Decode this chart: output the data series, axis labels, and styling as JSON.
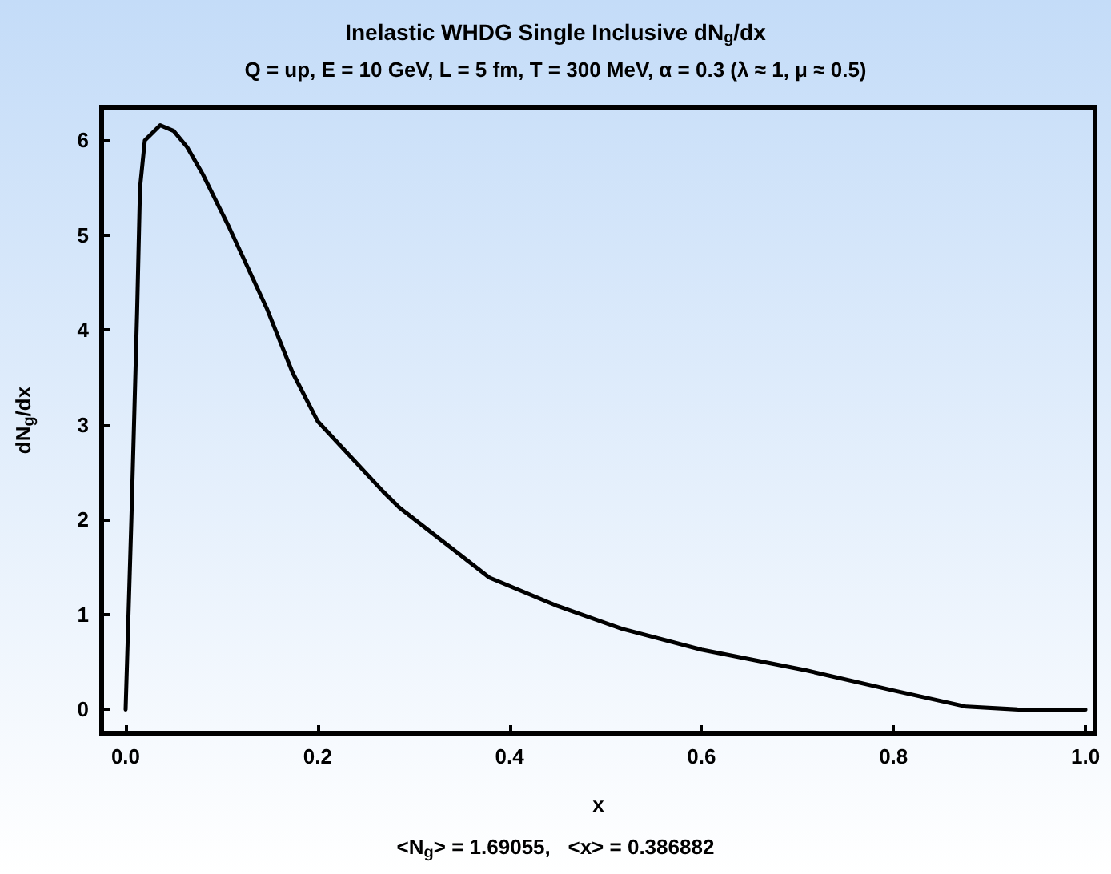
{
  "chart_data": {
    "type": "line",
    "title": "Inelastic WHDG Single Inclusive dN$_{g}$/dx",
    "subtitle": "Q = up, E = 10 GeV, L = 5 fm, T = 300 MeV, α = 0.3 (λ ≈ 1, μ ≈ 0.5)",
    "xlabel": "x",
    "ylabel": "dN$_{g}$/dx",
    "annotations": [
      "<N$_{g}$> = 1.69055,   <x> = 0.386882"
    ],
    "x": [
      0.0,
      0.006,
      0.012,
      0.015,
      0.02,
      0.036,
      0.05,
      0.064,
      0.08,
      0.108,
      0.147,
      0.174,
      0.2,
      0.268,
      0.285,
      0.379,
      0.45,
      0.517,
      0.6,
      0.71,
      0.8,
      0.876,
      0.93,
      1.0
    ],
    "series": [
      {
        "color": "#000000",
        "values": [
          0.0,
          2.0,
          4.2,
          5.5,
          6.0,
          6.16,
          6.1,
          5.93,
          5.65,
          5.08,
          4.23,
          3.55,
          3.04,
          2.3,
          2.13,
          1.39,
          1.09,
          0.85,
          0.63,
          0.41,
          0.2,
          0.03,
          0.0,
          0.0
        ]
      }
    ],
    "xlim": [
      -0.025,
      1.01
    ],
    "ylim": [
      -0.25,
      6.35
    ],
    "xticks": [
      {
        "value": 0,
        "label": "0.0"
      },
      0.2,
      0.4,
      0.6,
      0.8,
      {
        "value": 1,
        "label": "1.0"
      }
    ],
    "yticks": [
      0,
      1,
      2,
      3,
      4,
      5,
      6
    ],
    "grid": false,
    "marker": "none",
    "line_style": "solid"
  }
}
